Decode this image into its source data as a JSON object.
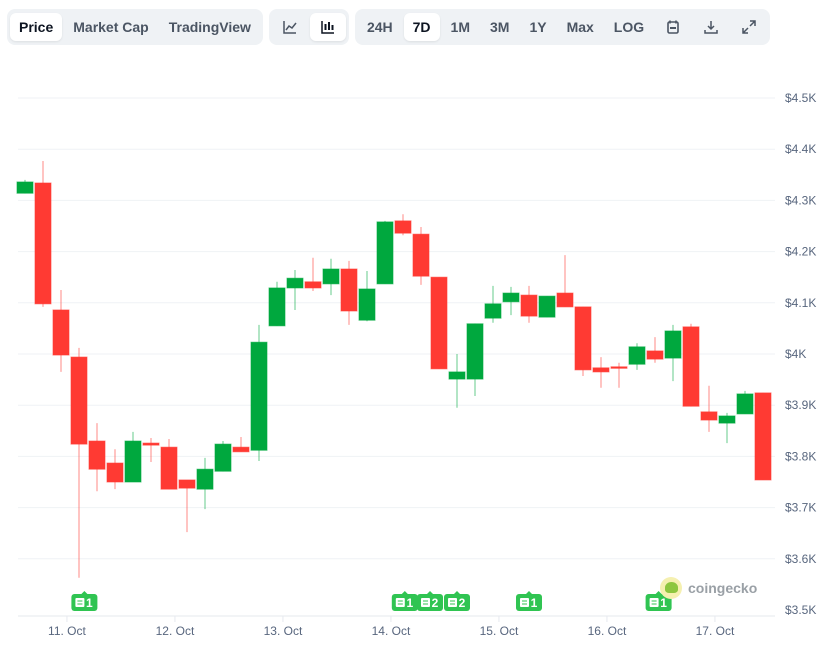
{
  "toolbar": {
    "view_tabs": [
      "Price",
      "Market Cap",
      "TradingView"
    ],
    "active_view": "Price",
    "chart_types": [
      {
        "icon": "line-chart-icon"
      },
      {
        "icon": "candlestick-icon",
        "active": true
      }
    ],
    "ranges": [
      "24H",
      "7D",
      "1M",
      "3M",
      "1Y",
      "Max",
      "LOG"
    ],
    "active_range": "7D",
    "actions": [
      {
        "icon": "calendar-icon"
      },
      {
        "icon": "download-icon"
      },
      {
        "icon": "expand-icon"
      }
    ]
  },
  "watermark": "coingecko",
  "colors": {
    "up": "#00a83e",
    "down": "#ff3a33",
    "grid": "#eff2f5",
    "badge": "#30c452"
  },
  "chart_data": {
    "type": "candlestick",
    "interval": "4h",
    "y_ticks": [
      "$3.5K",
      "$3.6K",
      "$3.7K",
      "$3.8K",
      "$3.9K",
      "$4K",
      "$4.1K",
      "$4.2K",
      "$4.3K",
      "$4.4K",
      "$4.5K"
    ],
    "ylim": [
      3500,
      4500
    ],
    "x_ticks": [
      "11. Oct",
      "12. Oct",
      "13. Oct",
      "14. Oct",
      "15. Oct",
      "16. Oct",
      "17. Oct"
    ],
    "grid": true,
    "ohlc": [
      [
        4314,
        4336,
        4340,
        4314
      ],
      [
        4334,
        4098,
        4377,
        4092
      ],
      [
        4086,
        3998,
        4125,
        3965
      ],
      [
        3994,
        3824,
        4012,
        3563
      ],
      [
        3830,
        3775,
        3865,
        3732
      ],
      [
        3787,
        3750,
        3814,
        3736
      ],
      [
        3750,
        3830,
        3848,
        3750
      ],
      [
        3826,
        3822,
        3836,
        3789
      ],
      [
        3818,
        3736,
        3834,
        3736
      ],
      [
        3754,
        3738,
        3754,
        3652
      ],
      [
        3736,
        3775,
        3797,
        3697
      ],
      [
        3771,
        3824,
        3830,
        3771
      ],
      [
        3818,
        3809,
        3838,
        3809
      ],
      [
        3812,
        4023,
        4057,
        3791
      ],
      [
        4055,
        4129,
        4141,
        4055
      ],
      [
        4129,
        4148,
        4164,
        4086
      ],
      [
        4141,
        4129,
        4188,
        4123
      ],
      [
        4137,
        4166,
        4186,
        4115
      ],
      [
        4166,
        4084,
        4182,
        4057
      ],
      [
        4066,
        4127,
        4162,
        4064
      ],
      [
        4137,
        4258,
        4260,
        4137
      ],
      [
        4260,
        4236,
        4273,
        4232
      ],
      [
        4234,
        4152,
        4248,
        4135
      ],
      [
        4150,
        3971,
        4150,
        3971
      ],
      [
        3951,
        3965,
        4000,
        3895
      ],
      [
        3951,
        4059,
        4059,
        3918
      ],
      [
        4070,
        4098,
        4133,
        4061
      ],
      [
        4102,
        4119,
        4131,
        4076
      ],
      [
        4115,
        4074,
        4133,
        4061
      ],
      [
        4072,
        4113,
        4113,
        4072
      ],
      [
        4119,
        4092,
        4193,
        4092
      ],
      [
        4092,
        3969,
        4092,
        3957
      ],
      [
        3973,
        3965,
        3994,
        3934
      ],
      [
        3975,
        3973,
        3983,
        3934
      ],
      [
        3980,
        4014,
        4021,
        3969
      ],
      [
        4006,
        3990,
        4033,
        3983
      ],
      [
        3992,
        4045,
        4057,
        3947
      ],
      [
        4053,
        3898,
        4059,
        3898
      ],
      [
        3887,
        3871,
        3938,
        3848
      ],
      [
        3865,
        3879,
        3885,
        3826
      ],
      [
        3883,
        3922,
        3928,
        3883
      ],
      [
        3924,
        3754,
        3924,
        3754
      ]
    ],
    "news_badges": [
      {
        "candle": 3.3,
        "count": "1"
      },
      {
        "candle": 21.1,
        "count": "1"
      },
      {
        "candle": 22.5,
        "count": "2"
      },
      {
        "candle": 24.0,
        "count": "2"
      },
      {
        "candle": 28.0,
        "count": "1"
      },
      {
        "candle": 35.2,
        "count": "1"
      }
    ]
  }
}
